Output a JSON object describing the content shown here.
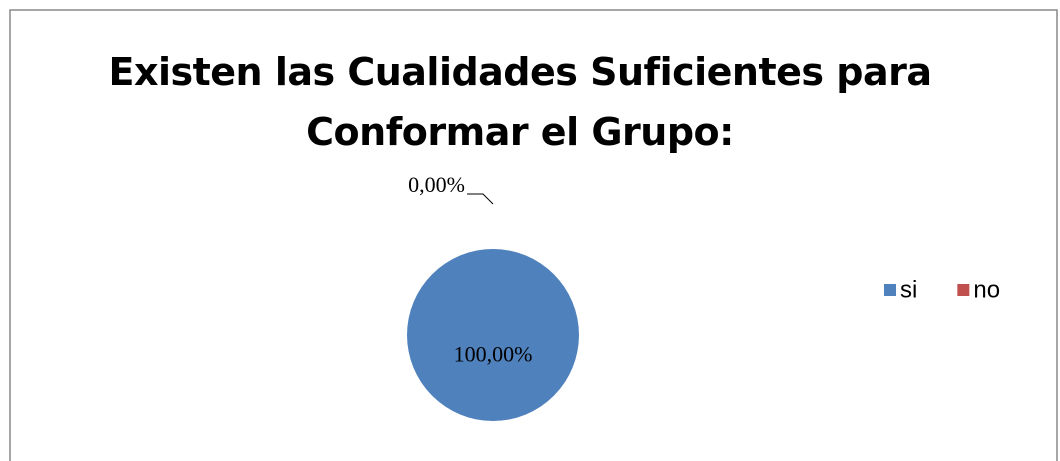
{
  "chart_data": {
    "type": "pie",
    "title": "Existen las Cualidades Suficientes para Conformar el Grupo:",
    "categories": [
      "si",
      "no"
    ],
    "values": [
      100,
      0
    ],
    "value_labels": [
      "100,00%",
      "0,00%"
    ],
    "colors": [
      "#4f81bd",
      "#c0504d"
    ],
    "legend": "right"
  }
}
